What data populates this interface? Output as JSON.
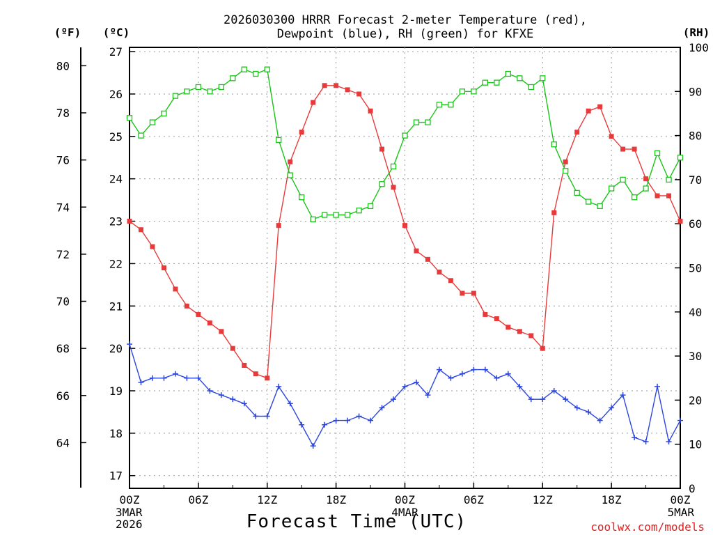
{
  "title": {
    "line1": "2026030300 HRRR Forecast 2-meter Temperature (red),",
    "line2": "Dewpoint (blue), RH (green) for KFXE"
  },
  "units": {
    "f": "(ºF)",
    "c": "(ºC)",
    "rh": "(RH)"
  },
  "xlabel": "Forecast Time (UTC)",
  "credit": "coolwx.com/models",
  "colors": {
    "temp": "#e83a3a",
    "dew": "#2b45e0",
    "rh": "#19c419",
    "grid": "#9a9a9a"
  },
  "chart_data": {
    "type": "line",
    "x_hours": {
      "start": 0,
      "end": 48,
      "step": 1
    },
    "x_ticks": [
      {
        "label": "00Z",
        "sub": [
          "3MAR",
          "2026"
        ]
      },
      {
        "label": "06Z",
        "sub": []
      },
      {
        "label": "12Z",
        "sub": []
      },
      {
        "label": "18Z",
        "sub": []
      },
      {
        "label": "00Z",
        "sub": [
          "4MAR"
        ]
      },
      {
        "label": "06Z",
        "sub": []
      },
      {
        "label": "12Z",
        "sub": []
      },
      {
        "label": "18Z",
        "sub": []
      },
      {
        "label": "00Z",
        "sub": [
          "5MAR"
        ]
      }
    ],
    "y_celsius": {
      "ticks": [
        "17",
        "18",
        "19",
        "20",
        "21",
        "22",
        "23",
        "24",
        "25",
        "26",
        "27"
      ],
      "ylim": [
        16.7,
        27.1
      ]
    },
    "y_fahrenheit": {
      "ticks": [
        "64",
        "66",
        "68",
        "70",
        "72",
        "74",
        "76",
        "78",
        "80"
      ]
    },
    "y_rh": {
      "ticks": [
        "0",
        "10",
        "20",
        "30",
        "40",
        "50",
        "60",
        "70",
        "80",
        "90",
        "100"
      ],
      "ylim": [
        0,
        100
      ]
    },
    "grid": true,
    "series": [
      {
        "name": "Temperature",
        "unit": "C",
        "values": [
          23.0,
          22.8,
          22.4,
          21.9,
          21.4,
          21.0,
          20.8,
          20.6,
          20.4,
          20.0,
          19.6,
          19.4,
          19.3,
          22.9,
          24.4,
          25.1,
          25.8,
          26.2,
          26.2,
          26.1,
          26.0,
          25.6,
          24.7,
          23.8,
          22.9,
          22.3,
          22.1,
          21.8,
          21.6,
          21.3,
          21.3,
          20.8,
          20.7,
          20.5,
          20.4,
          20.3,
          20.0,
          23.2,
          24.4,
          25.1,
          25.6,
          25.7,
          25.0,
          24.7,
          24.7,
          24.0,
          23.6,
          23.6,
          23.0
        ]
      },
      {
        "name": "Dewpoint",
        "unit": "C",
        "values": [
          20.1,
          19.2,
          19.3,
          19.3,
          19.4,
          19.3,
          19.3,
          19.0,
          18.9,
          18.8,
          18.7,
          18.4,
          18.4,
          19.1,
          18.7,
          18.2,
          17.7,
          18.2,
          18.3,
          18.3,
          18.4,
          18.3,
          18.6,
          18.8,
          19.1,
          19.2,
          18.9,
          19.5,
          19.3,
          19.4,
          19.5,
          19.5,
          19.3,
          19.4,
          19.1,
          18.8,
          18.8,
          19.0,
          18.8,
          18.6,
          18.5,
          18.3,
          18.6,
          18.9,
          17.9,
          17.8,
          19.1,
          17.8,
          18.3
        ]
      },
      {
        "name": "RH",
        "unit": "%",
        "values": [
          84,
          80,
          83,
          85,
          89,
          90,
          91,
          90,
          91,
          93,
          95,
          94,
          95,
          79,
          71,
          66,
          61,
          62,
          62,
          62,
          63,
          64,
          69,
          73,
          80,
          83,
          83,
          87,
          87,
          90,
          90,
          92,
          92,
          94,
          93,
          91,
          93,
          78,
          72,
          67,
          65,
          64,
          68,
          70,
          66,
          68,
          76,
          70,
          75
        ]
      }
    ]
  }
}
